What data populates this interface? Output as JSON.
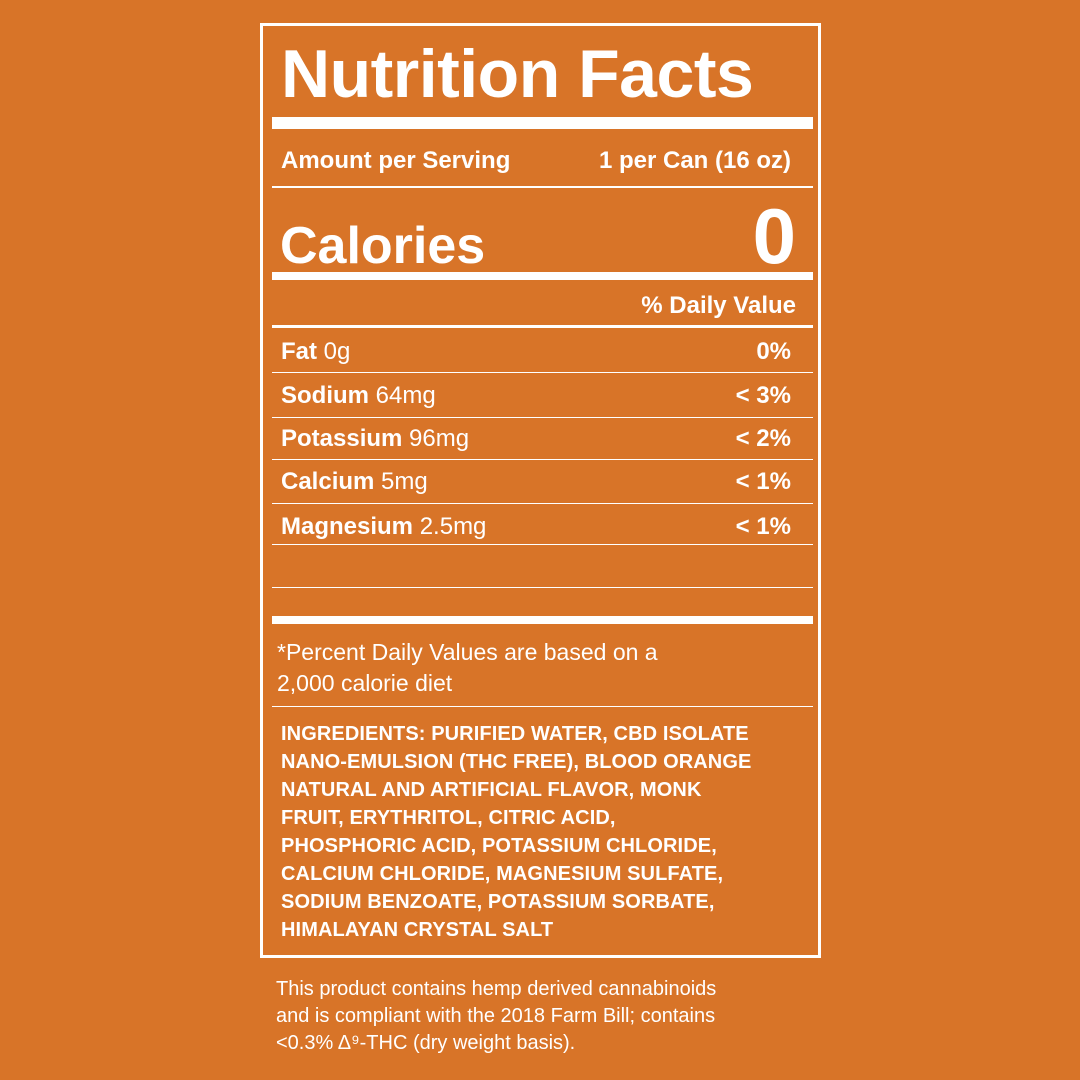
{
  "label": {
    "title": "Nutrition Facts",
    "serving_label": "Amount per Serving",
    "serving_value": "1 per Can (16 oz)",
    "calories_label": "Calories",
    "calories_value": "0",
    "daily_value_header": "% Daily Value",
    "nutrients": [
      {
        "name": "Fat",
        "amount": "0g",
        "dv": "0%"
      },
      {
        "name": "Sodium",
        "amount": "64mg",
        "dv": "< 3%"
      },
      {
        "name": "Potassium",
        "amount": "96mg",
        "dv": "< 2%"
      },
      {
        "name": "Calcium",
        "amount": "5mg",
        "dv": "< 1%"
      },
      {
        "name": "Magnesium",
        "amount": "2.5mg",
        "dv": "< 1%"
      }
    ],
    "footnote_line1": "*Percent Daily Values are based on a",
    "footnote_line2": "2,000 calorie diet",
    "ingredients_lines": [
      "INGREDIENTS: PURIFIED WATER, CBD ISOLATE",
      "NANO-EMULSION (THC FREE), BLOOD ORANGE",
      "NATURAL AND ARTIFICIAL FLAVOR, MONK",
      "FRUIT, ERYTHRITOL, CITRIC ACID,",
      "PHOSPHORIC ACID, POTASSIUM CHLORIDE,",
      "CALCIUM CHLORIDE, MAGNESIUM SULFATE,",
      "SODIUM BENZOATE, POTASSIUM SORBATE,",
      "HIMALAYAN CRYSTAL SALT"
    ]
  },
  "disclaimer_lines": [
    "This product contains hemp derived cannabinoids",
    "and is compliant with the 2018 Farm Bill; contains",
    "<0.3% Δ⁹-THC (dry weight basis)."
  ],
  "colors": {
    "background": "#D87428",
    "foreground": "#FFFFFF"
  }
}
